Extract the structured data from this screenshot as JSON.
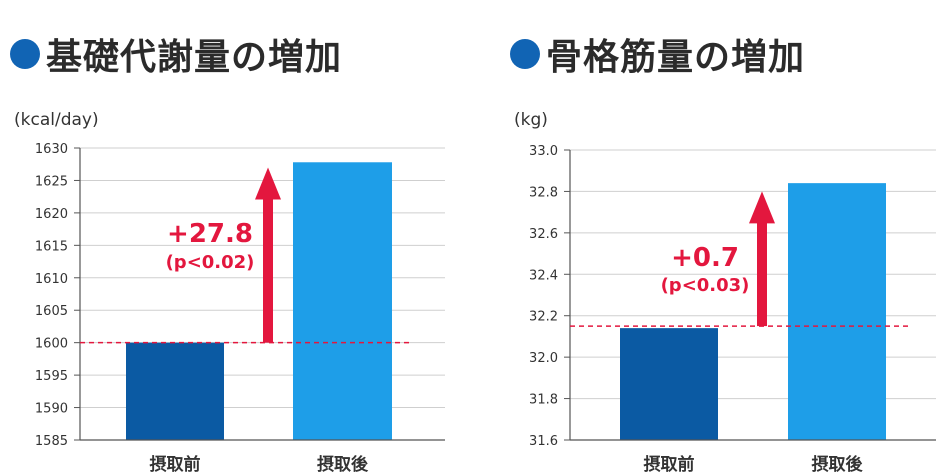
{
  "colors": {
    "before_bar": "#0b5aa3",
    "after_bar": "#1e9ee8",
    "accent": "#e3173e",
    "title_dot": "#1164b4",
    "grid": "#cfcfcf",
    "axis": "#555555"
  },
  "chart_data": [
    {
      "type": "bar",
      "title": "基礎代謝量の増加",
      "unit_label": "(kcal/day)",
      "categories": [
        "摂取前",
        "摂取後"
      ],
      "values": [
        1600,
        1627.8
      ],
      "ylim": [
        1585,
        1630
      ],
      "yticks": [
        "1630",
        "1625",
        "1620",
        "1615",
        "1610",
        "1605",
        "1600",
        "1595",
        "1590",
        "1585"
      ],
      "grid": true,
      "baseline_value": 1600,
      "annotation": {
        "delta": "+27.8",
        "p_value": "(p<0.02)",
        "arrow_from": 1600,
        "arrow_to": 1627
      }
    },
    {
      "type": "bar",
      "title": "骨格筋量の増加",
      "unit_label": "(kg)",
      "categories": [
        "摂取前",
        "摂取後"
      ],
      "values": [
        32.14,
        32.84
      ],
      "ylim": [
        31.6,
        33.0
      ],
      "yticks": [
        "33.0",
        "32.8",
        "32.6",
        "32.4",
        "32.2",
        "32.0",
        "31.8",
        "31.6"
      ],
      "grid": true,
      "baseline_value": 32.15,
      "annotation": {
        "delta": "+0.7",
        "p_value": "(p<0.03)",
        "arrow_from": 32.15,
        "arrow_to": 32.8
      }
    }
  ]
}
